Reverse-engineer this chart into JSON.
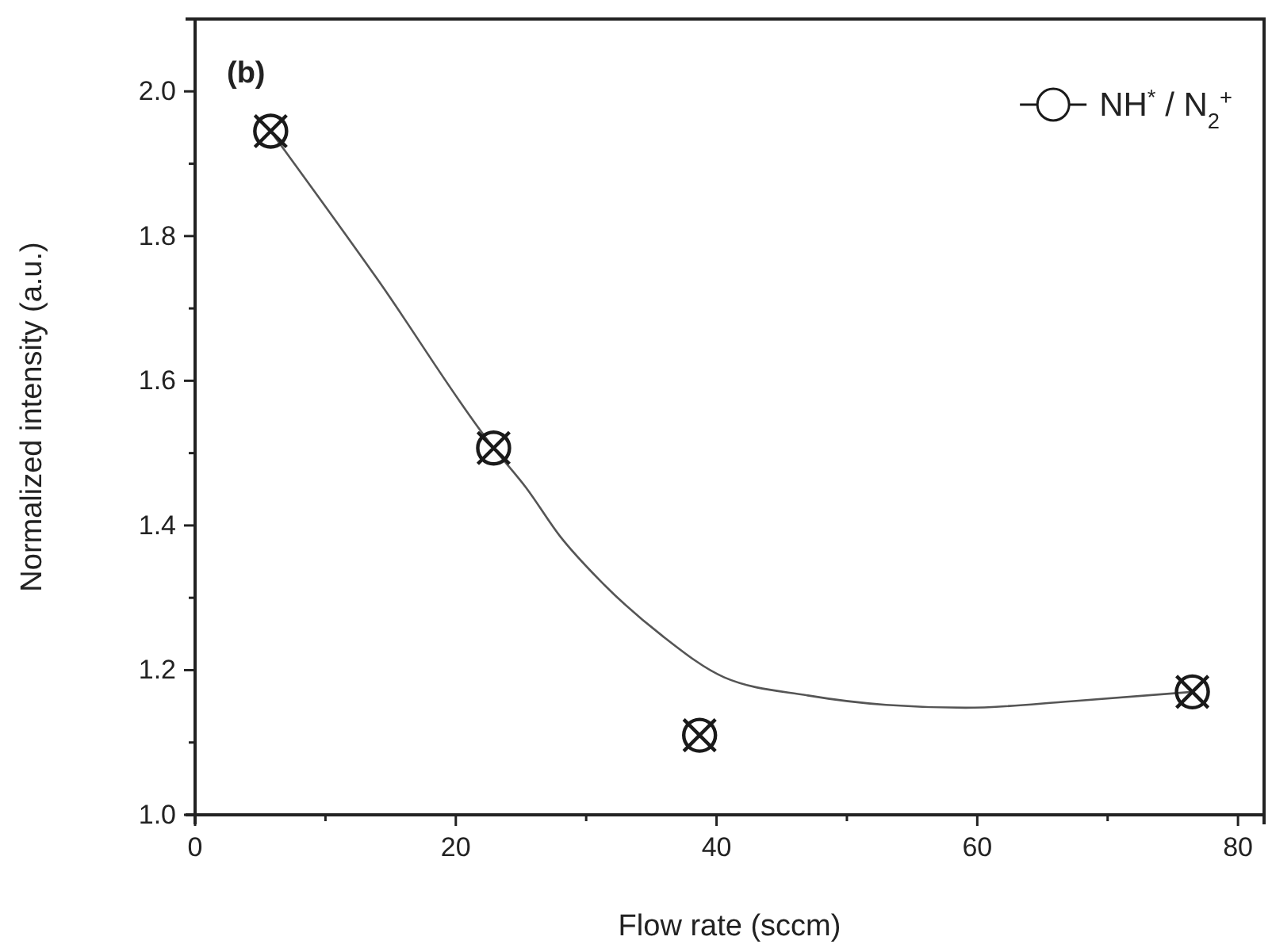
{
  "chart_data": {
    "type": "scatter",
    "xlabel": "Flow rate (sccm)",
    "ylabel": "Normalized intensity (a.u.)",
    "annotations": [
      "(b)"
    ],
    "xlim": [
      0,
      82
    ],
    "xticks": [
      0,
      {
        "value": 10,
        "label": null
      },
      20,
      {
        "value": 30,
        "label": null
      },
      40,
      {
        "value": 50,
        "label": null
      },
      60,
      {
        "value": 70,
        "label": null
      },
      80
    ],
    "ylim": [
      1.0,
      2.1
    ],
    "yticks": [
      {
        "value": 1.0,
        "label": "1.0"
      },
      {
        "value": 1.1,
        "label": null
      },
      {
        "value": 1.2,
        "label": "1.2"
      },
      {
        "value": 1.3,
        "label": null
      },
      {
        "value": 1.4,
        "label": "1.4"
      },
      {
        "value": 1.5,
        "label": null
      },
      {
        "value": 1.6,
        "label": "1.6"
      },
      {
        "value": 1.7,
        "label": null
      },
      {
        "value": 1.8,
        "label": "1.8"
      },
      {
        "value": 1.9,
        "label": null
      },
      {
        "value": 2.0,
        "label": "2.0"
      }
    ],
    "legend": "top right",
    "grid": false,
    "series": [
      {
        "name": "NH$^{*}$ / N$_{2}$$^{+}$",
        "marker": "circle",
        "color": "#1a1a1a",
        "x": [
          5.8,
          22.9,
          38.7,
          76.5
        ],
        "values": [
          1.945,
          1.507,
          1.11,
          1.17
        ]
      },
      {
        "type": "line",
        "color": "#555555",
        "line_style": "solid",
        "x": [
          5.8,
          14,
          22.9,
          25.4,
          28,
          31,
          35.8,
          40.6,
          47,
          53,
          59.1,
          67.2,
          76.5
        ],
        "values": [
          1.945,
          1.74,
          1.507,
          1.452,
          1.385,
          1.325,
          1.248,
          1.19,
          1.165,
          1.152,
          1.148,
          1.157,
          1.17
        ]
      }
    ]
  }
}
